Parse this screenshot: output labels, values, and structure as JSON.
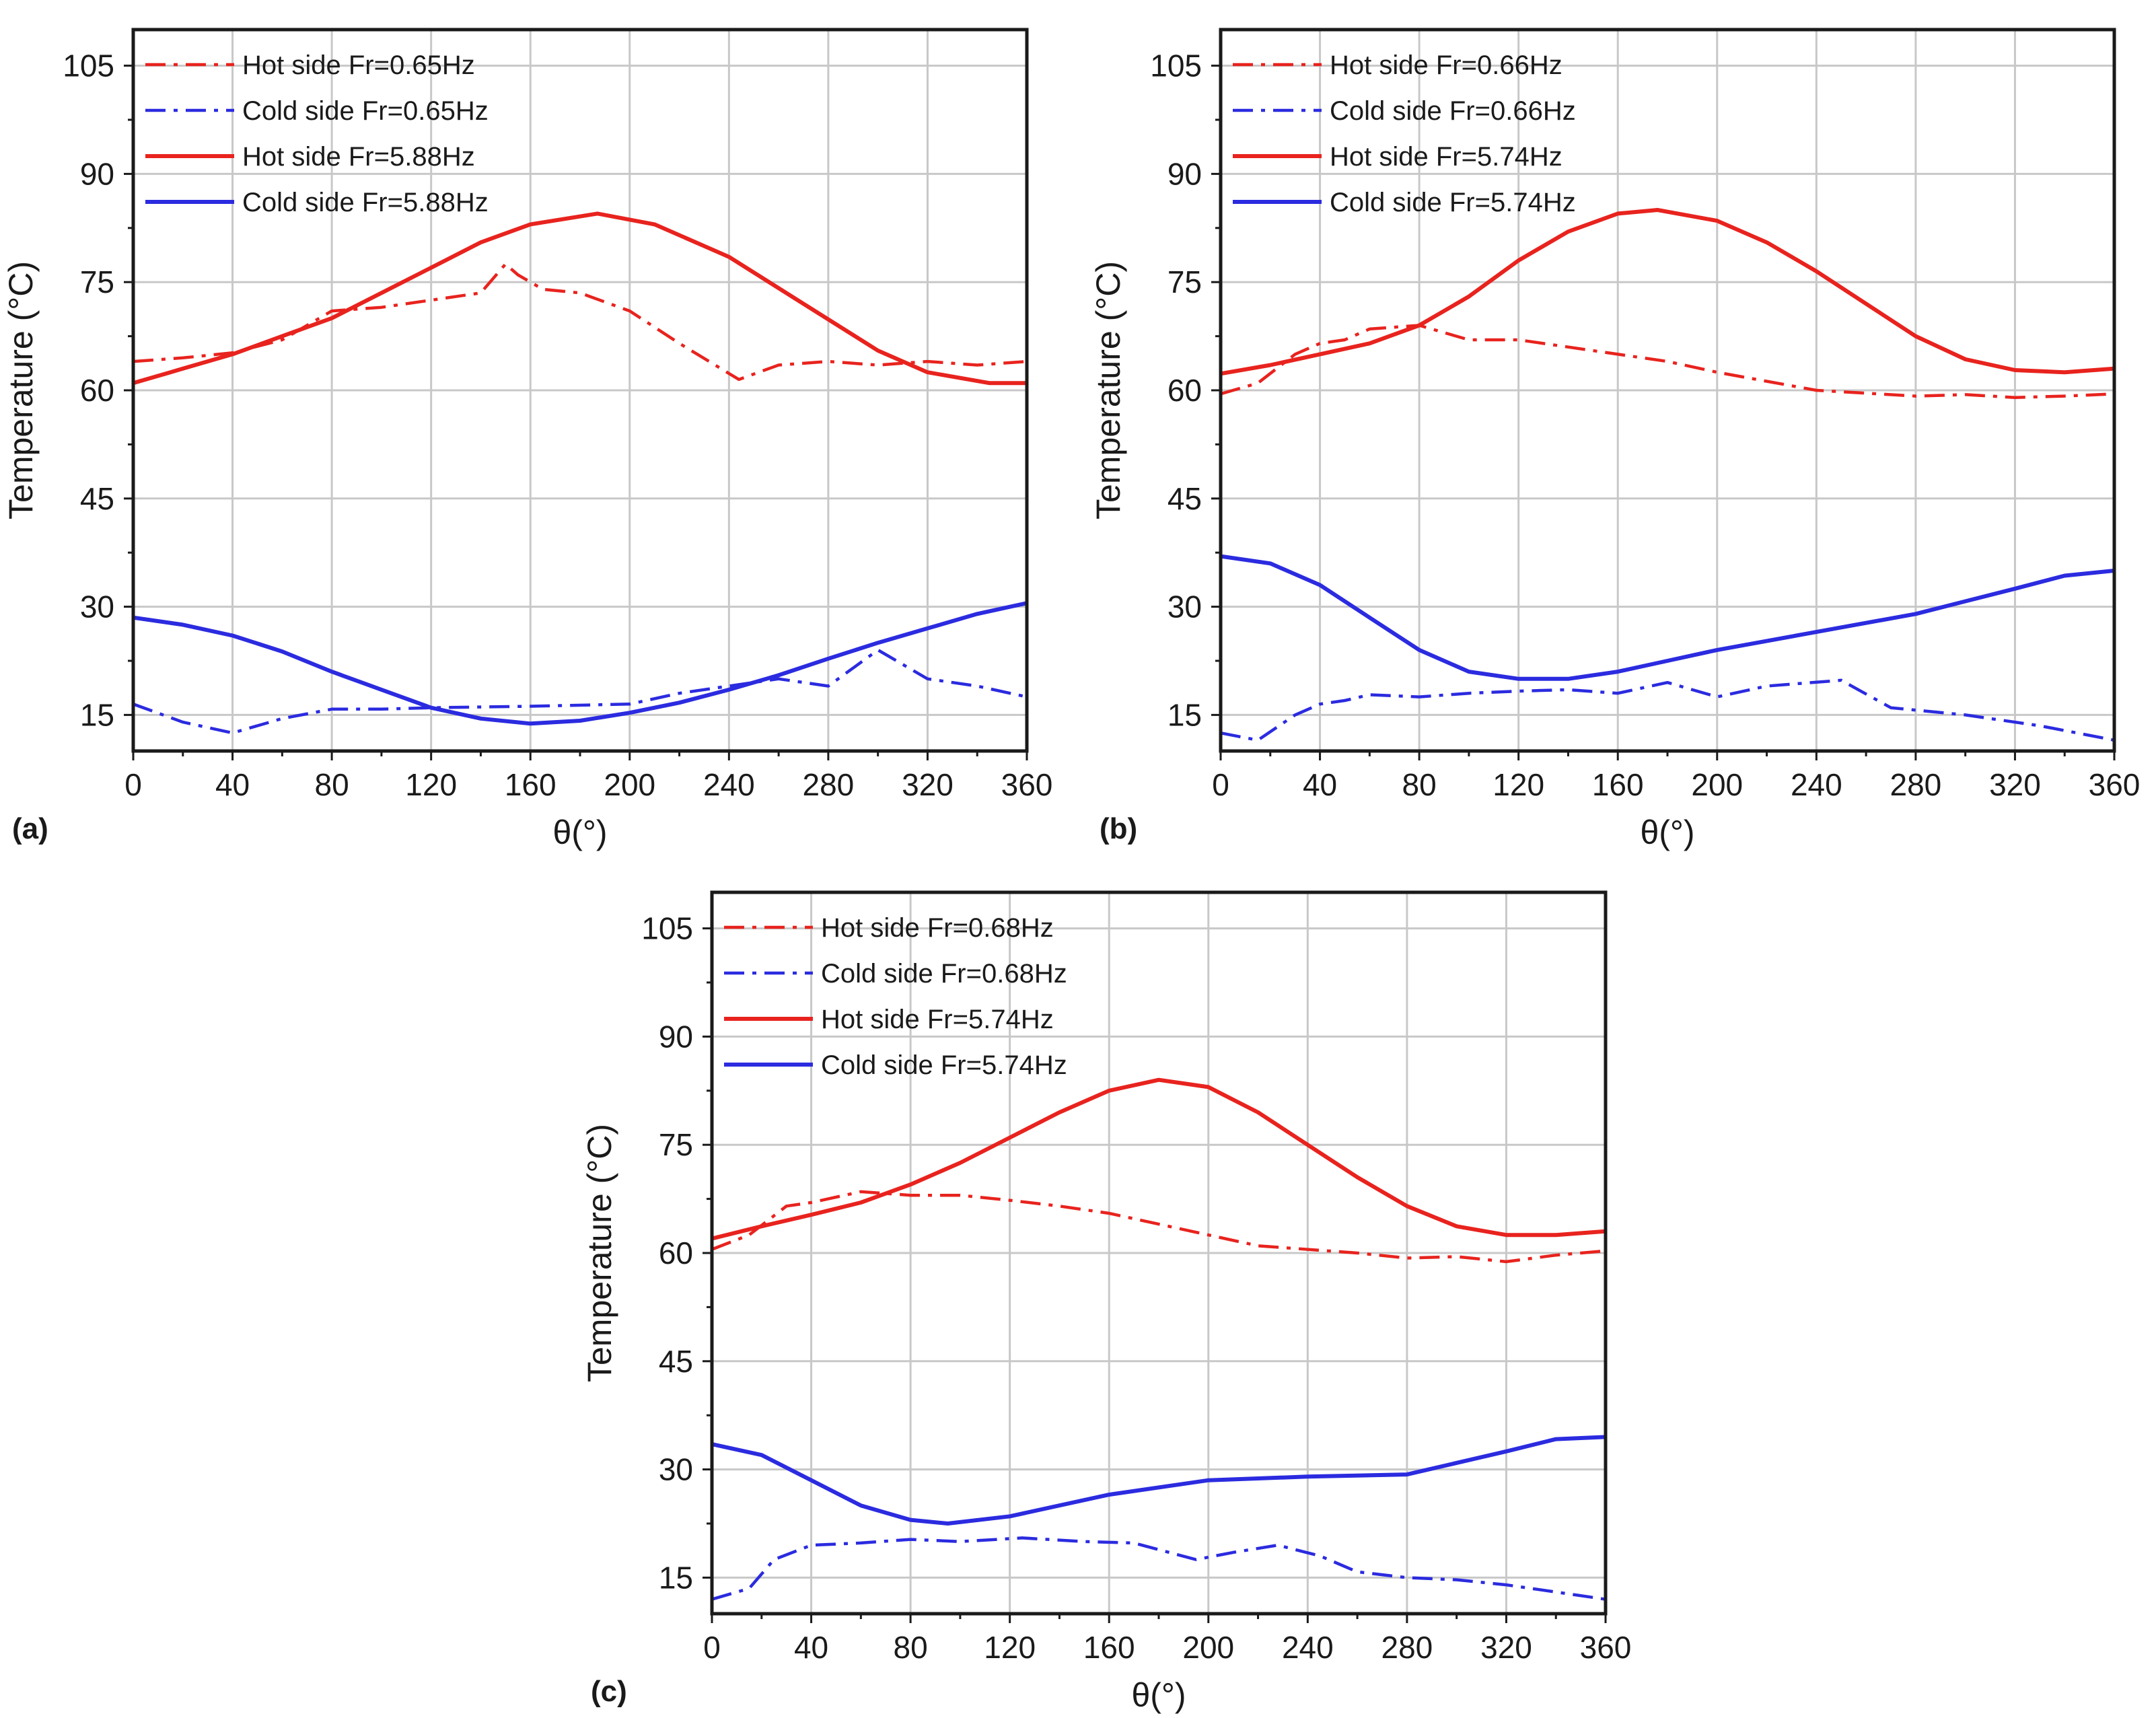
{
  "colors": {
    "hot": "#e8231e",
    "cold": "#2b2be0"
  },
  "chart_data": [
    {
      "type": "line",
      "panel_label": "(a)",
      "xlabel": "θ(°)",
      "ylabel": "Temperature (°C)",
      "xlim": [
        0,
        360
      ],
      "ylim": [
        10,
        110
      ],
      "xticks": [
        0,
        40,
        80,
        120,
        160,
        200,
        240,
        280,
        320,
        360
      ],
      "yticks": [
        15,
        30,
        45,
        60,
        75,
        90,
        105
      ],
      "legend_position": "top-left",
      "series": [
        {
          "name": "Hot side Fr=0.65Hz",
          "style": "dashdot",
          "color": "hot",
          "x": [
            0,
            20,
            40,
            60,
            80,
            100,
            120,
            140,
            150,
            155,
            165,
            180,
            200,
            220,
            244,
            260,
            280,
            300,
            320,
            340,
            360
          ],
          "y": [
            64,
            64.5,
            65.2,
            67,
            71,
            71.5,
            72.5,
            73.5,
            77.5,
            76,
            74,
            73.5,
            71,
            66.5,
            61.5,
            63.5,
            64,
            63.5,
            64,
            63.5,
            64
          ]
        },
        {
          "name": "Cold side Fr=0.65Hz",
          "style": "dashdot",
          "color": "cold",
          "x": [
            0,
            20,
            40,
            60,
            80,
            100,
            120,
            160,
            200,
            220,
            240,
            260,
            280,
            300,
            320,
            340,
            360
          ],
          "y": [
            16.5,
            14,
            12.5,
            14.5,
            15.8,
            15.8,
            16,
            16.2,
            16.5,
            18,
            19,
            20,
            19,
            24,
            20,
            19,
            17.5
          ]
        },
        {
          "name": "Hot side Fr=5.88Hz",
          "style": "solid",
          "color": "hot",
          "x": [
            0,
            20,
            40,
            60,
            80,
            100,
            120,
            140,
            160,
            187,
            210,
            240,
            270,
            300,
            320,
            345,
            360
          ],
          "y": [
            61,
            63,
            65,
            67.5,
            70,
            73.5,
            77,
            80.5,
            83,
            84.5,
            83,
            78.5,
            72,
            65.5,
            62.5,
            61,
            61
          ]
        },
        {
          "name": "Cold side Fr=5.88Hz",
          "style": "solid",
          "color": "cold",
          "x": [
            0,
            20,
            40,
            60,
            80,
            100,
            120,
            140,
            160,
            180,
            200,
            220,
            240,
            260,
            280,
            300,
            320,
            340,
            360
          ],
          "y": [
            28.5,
            27.5,
            26,
            23.8,
            21,
            18.5,
            16,
            14.5,
            13.8,
            14.2,
            15.3,
            16.7,
            18.5,
            20.5,
            22.8,
            25,
            27,
            29,
            30.5
          ]
        }
      ]
    },
    {
      "type": "line",
      "panel_label": "(b)",
      "xlabel": "θ(°)",
      "ylabel": "Temperature (°C)",
      "xlim": [
        0,
        360
      ],
      "ylim": [
        10,
        110
      ],
      "xticks": [
        0,
        40,
        80,
        120,
        160,
        200,
        240,
        280,
        320,
        360
      ],
      "yticks": [
        15,
        30,
        45,
        60,
        75,
        90,
        105
      ],
      "legend_position": "top-left",
      "series": [
        {
          "name": "Hot side Fr=0.66Hz",
          "style": "dashdot",
          "color": "hot",
          "x": [
            0,
            15,
            30,
            40,
            50,
            60,
            80,
            100,
            120,
            140,
            160,
            180,
            200,
            240,
            280,
            300,
            320,
            340,
            360
          ],
          "y": [
            59.5,
            61,
            65,
            66.5,
            67,
            68.5,
            69,
            67,
            67,
            66,
            65,
            64,
            62.5,
            60,
            59.2,
            59.4,
            59,
            59.2,
            59.5
          ]
        },
        {
          "name": "Cold side Fr=0.66Hz",
          "style": "dashdot",
          "color": "cold",
          "x": [
            0,
            15,
            30,
            40,
            50,
            60,
            80,
            100,
            120,
            140,
            160,
            180,
            200,
            220,
            250,
            270,
            300,
            330,
            360
          ],
          "y": [
            12.5,
            11.5,
            15,
            16.5,
            17,
            17.8,
            17.5,
            18,
            18.3,
            18.5,
            18,
            19.5,
            17.5,
            19,
            19.8,
            16,
            15,
            13.5,
            11.5
          ]
        },
        {
          "name": "Hot side Fr=5.74Hz",
          "style": "solid",
          "color": "hot",
          "x": [
            0,
            20,
            40,
            60,
            80,
            100,
            120,
            140,
            160,
            176,
            200,
            220,
            240,
            260,
            280,
            300,
            320,
            340,
            360
          ],
          "y": [
            62.3,
            63.5,
            65,
            66.5,
            69,
            73,
            78,
            82,
            84.5,
            85,
            83.5,
            80.5,
            76.5,
            72,
            67.5,
            64.3,
            62.8,
            62.5,
            63
          ]
        },
        {
          "name": "Cold side Fr=5.74Hz",
          "style": "solid",
          "color": "cold",
          "x": [
            0,
            20,
            40,
            60,
            80,
            100,
            120,
            140,
            160,
            180,
            200,
            240,
            280,
            320,
            340,
            360
          ],
          "y": [
            37,
            36,
            33,
            28.5,
            24,
            21,
            20,
            20,
            21,
            22.5,
            24,
            26.5,
            29,
            32.5,
            34.3,
            35
          ]
        }
      ]
    },
    {
      "type": "line",
      "panel_label": "(c)",
      "xlabel": "θ(°)",
      "ylabel": "Temperature (°C)",
      "xlim": [
        0,
        360
      ],
      "ylim": [
        10,
        110
      ],
      "xticks": [
        0,
        40,
        80,
        120,
        160,
        200,
        240,
        280,
        320,
        360
      ],
      "yticks": [
        15,
        30,
        45,
        60,
        75,
        90,
        105
      ],
      "legend_position": "top-left",
      "series": [
        {
          "name": "Hot side Fr=0.68Hz",
          "style": "dashdot",
          "color": "hot",
          "x": [
            0,
            15,
            30,
            40,
            60,
            80,
            100,
            120,
            140,
            160,
            180,
            200,
            220,
            260,
            280,
            300,
            320,
            340,
            360
          ],
          "y": [
            60.5,
            62.5,
            66.5,
            67,
            68.5,
            68,
            68,
            67.3,
            66.5,
            65.5,
            64,
            62.5,
            61,
            60,
            59.3,
            59.5,
            58.8,
            59.7,
            60.3
          ]
        },
        {
          "name": "Cold side Fr=0.68Hz",
          "style": "dashdot",
          "color": "cold",
          "x": [
            0,
            15,
            25,
            40,
            60,
            80,
            100,
            125,
            150,
            170,
            195,
            210,
            228,
            245,
            260,
            280,
            300,
            320,
            340,
            360
          ],
          "y": [
            12,
            13.5,
            17.5,
            19.5,
            19.8,
            20.3,
            20,
            20.5,
            20,
            19.8,
            17.5,
            18.5,
            19.5,
            18,
            15.8,
            15,
            14.7,
            14,
            13,
            12
          ]
        },
        {
          "name": "Hot side Fr=5.74Hz",
          "style": "solid",
          "color": "hot",
          "x": [
            0,
            20,
            40,
            60,
            80,
            100,
            120,
            140,
            160,
            180,
            200,
            220,
            240,
            260,
            280,
            300,
            320,
            340,
            360
          ],
          "y": [
            62,
            63.7,
            65.3,
            67,
            69.5,
            72.5,
            76,
            79.5,
            82.5,
            84,
            83,
            79.5,
            75,
            70.5,
            66.5,
            63.7,
            62.5,
            62.5,
            63
          ]
        },
        {
          "name": "Cold side Fr=5.74Hz",
          "style": "solid",
          "color": "cold",
          "x": [
            0,
            20,
            40,
            60,
            80,
            95,
            120,
            160,
            200,
            240,
            280,
            320,
            340,
            360
          ],
          "y": [
            33.5,
            32,
            28.5,
            25,
            23,
            22.5,
            23.5,
            26.5,
            28.5,
            29,
            29.3,
            32.5,
            34.2,
            34.5
          ]
        }
      ]
    }
  ]
}
